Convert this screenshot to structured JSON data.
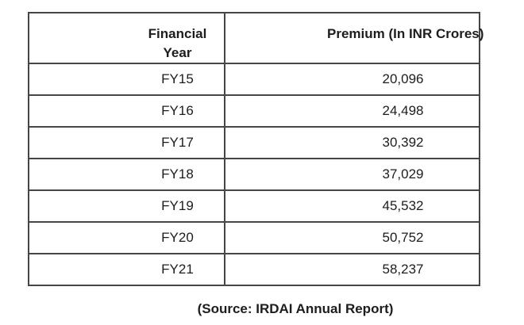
{
  "page": {
    "background": "#ffffff",
    "border_color": "#454545",
    "text_color": "#1d1d1d"
  },
  "table": {
    "header": {
      "year": "Financial Year",
      "premium": "Premium (In INR Crores)"
    },
    "rows": [
      {
        "year": "FY15",
        "premium": "20,096"
      },
      {
        "year": "FY16",
        "premium": "24,498"
      },
      {
        "year": "FY17",
        "premium": "30,392"
      },
      {
        "year": "FY18",
        "premium": "37,029"
      },
      {
        "year": "FY19",
        "premium": "45,532"
      },
      {
        "year": "FY20",
        "premium": "50,752"
      },
      {
        "year": "FY21",
        "premium": "58,237"
      }
    ]
  },
  "caption": "(Source: IRDAI Annual Report)",
  "chart_data": {
    "type": "table",
    "title": "",
    "columns": [
      "Financial Year",
      "Premium (In INR Crores)"
    ],
    "categories": [
      "FY15",
      "FY16",
      "FY17",
      "FY18",
      "FY19",
      "FY20",
      "FY21"
    ],
    "values": [
      20096,
      24498,
      30392,
      37029,
      45532,
      50752,
      58237
    ],
    "source": "(Source: IRDAI Annual Report)"
  }
}
